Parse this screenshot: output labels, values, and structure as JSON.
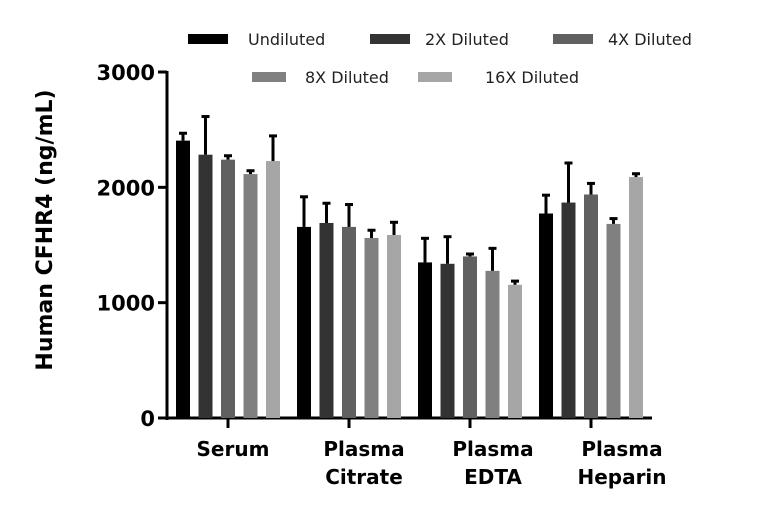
{
  "chart_data": {
    "type": "bar",
    "title": "",
    "xlabel": "",
    "ylabel": "Human CFHR4 (ng/mL)",
    "ylim": [
      0,
      3000
    ],
    "yticks": [
      0,
      1000,
      2000,
      3000
    ],
    "grid": false,
    "legend_placement": "top",
    "categories": [
      [
        "Serum"
      ],
      [
        "Plasma",
        "Citrate"
      ],
      [
        "Plasma",
        "EDTA"
      ],
      [
        "Plasma",
        "Heparin"
      ]
    ],
    "series": [
      {
        "name": "Undiluted",
        "color": "#000000",
        "values": [
          2405,
          1657,
          1349,
          1773
        ],
        "error": [
          64,
          261,
          209,
          159
        ]
      },
      {
        "name": "2X Diluted",
        "color": "#333333",
        "values": [
          2283,
          1691,
          1337,
          1868
        ],
        "error": [
          331,
          171,
          235,
          343
        ]
      },
      {
        "name": "4X Diluted",
        "color": "#606060",
        "values": [
          2240,
          1657,
          1401,
          1938
        ],
        "error": [
          34,
          194,
          21,
          96
        ]
      },
      {
        "name": "8X Diluted",
        "color": "#808080",
        "values": [
          2115,
          1561,
          1276,
          1683
        ],
        "error": [
          29,
          67,
          195,
          46
        ]
      },
      {
        "name": "16X Diluted",
        "color": "#a6a6a6",
        "values": [
          2228,
          1587,
          1155,
          2089
        ],
        "error": [
          218,
          110,
          32,
          29
        ]
      }
    ]
  }
}
